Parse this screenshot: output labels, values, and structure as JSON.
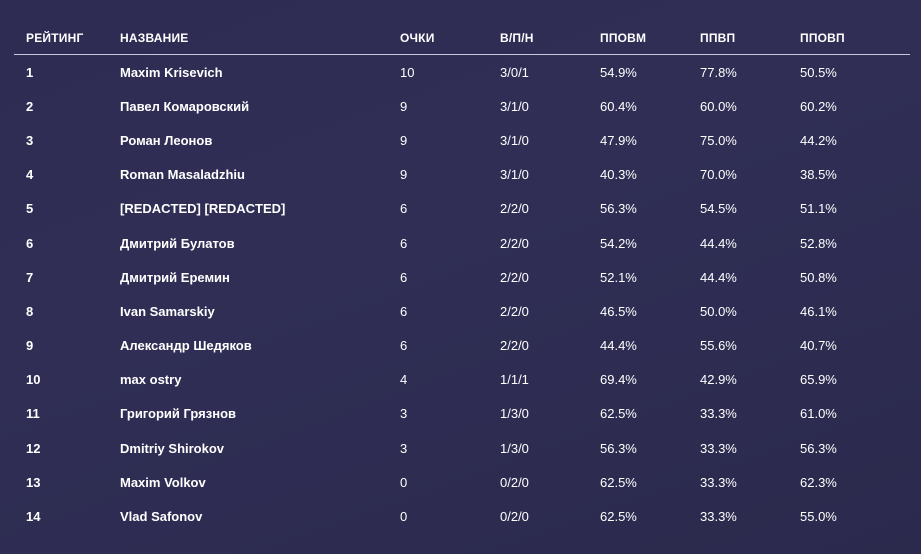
{
  "headers": {
    "rank": "РЕЙТИНГ",
    "name": "НАЗВАНИЕ",
    "points": "ОЧКИ",
    "wld": "В/П/Н",
    "povm": "ППОВМ",
    "ppvp": "ППВП",
    "povp": "ППОВП"
  },
  "rows": [
    {
      "rank": "1",
      "name": "Maxim Krisevich",
      "points": "10",
      "wld": "3/0/1",
      "povm": "54.9%",
      "ppvp": "77.8%",
      "povp": "50.5%"
    },
    {
      "rank": "2",
      "name": "Павел Комаровский",
      "points": "9",
      "wld": "3/1/0",
      "povm": "60.4%",
      "ppvp": "60.0%",
      "povp": "60.2%"
    },
    {
      "rank": "3",
      "name": "Роман Леонов",
      "points": "9",
      "wld": "3/1/0",
      "povm": "47.9%",
      "ppvp": "75.0%",
      "povp": "44.2%"
    },
    {
      "rank": "4",
      "name": "Roman Masaladzhiu",
      "points": "9",
      "wld": "3/1/0",
      "povm": "40.3%",
      "ppvp": "70.0%",
      "povp": "38.5%"
    },
    {
      "rank": "5",
      "name": "[REDACTED] [REDACTED]",
      "points": "6",
      "wld": "2/2/0",
      "povm": "56.3%",
      "ppvp": "54.5%",
      "povp": "51.1%"
    },
    {
      "rank": "6",
      "name": "Дмитрий Булатов",
      "points": "6",
      "wld": "2/2/0",
      "povm": "54.2%",
      "ppvp": "44.4%",
      "povp": "52.8%"
    },
    {
      "rank": "7",
      "name": "Дмитрий Еремин",
      "points": "6",
      "wld": "2/2/0",
      "povm": "52.1%",
      "ppvp": "44.4%",
      "povp": "50.8%"
    },
    {
      "rank": "8",
      "name": "Ivan Samarskiy",
      "points": "6",
      "wld": "2/2/0",
      "povm": "46.5%",
      "ppvp": "50.0%",
      "povp": "46.1%"
    },
    {
      "rank": "9",
      "name": "Александр Шедяков",
      "points": "6",
      "wld": "2/2/0",
      "povm": "44.4%",
      "ppvp": "55.6%",
      "povp": "40.7%"
    },
    {
      "rank": "10",
      "name": "max ostry",
      "points": "4",
      "wld": "1/1/1",
      "povm": "69.4%",
      "ppvp": "42.9%",
      "povp": "65.9%"
    },
    {
      "rank": "11",
      "name": "Григорий Грязнов",
      "points": "3",
      "wld": "1/3/0",
      "povm": "62.5%",
      "ppvp": "33.3%",
      "povp": "61.0%"
    },
    {
      "rank": "12",
      "name": "Dmitriy Shirokov",
      "points": "3",
      "wld": "1/3/0",
      "povm": "56.3%",
      "ppvp": "33.3%",
      "povp": "56.3%"
    },
    {
      "rank": "13",
      "name": "Maxim Volkov",
      "points": "0",
      "wld": "0/2/0",
      "povm": "62.5%",
      "ppvp": "33.3%",
      "povp": "62.3%"
    },
    {
      "rank": "14",
      "name": "Vlad Safonov",
      "points": "0",
      "wld": "0/2/0",
      "povm": "62.5%",
      "ppvp": "33.3%",
      "povp": "55.0%"
    }
  ]
}
